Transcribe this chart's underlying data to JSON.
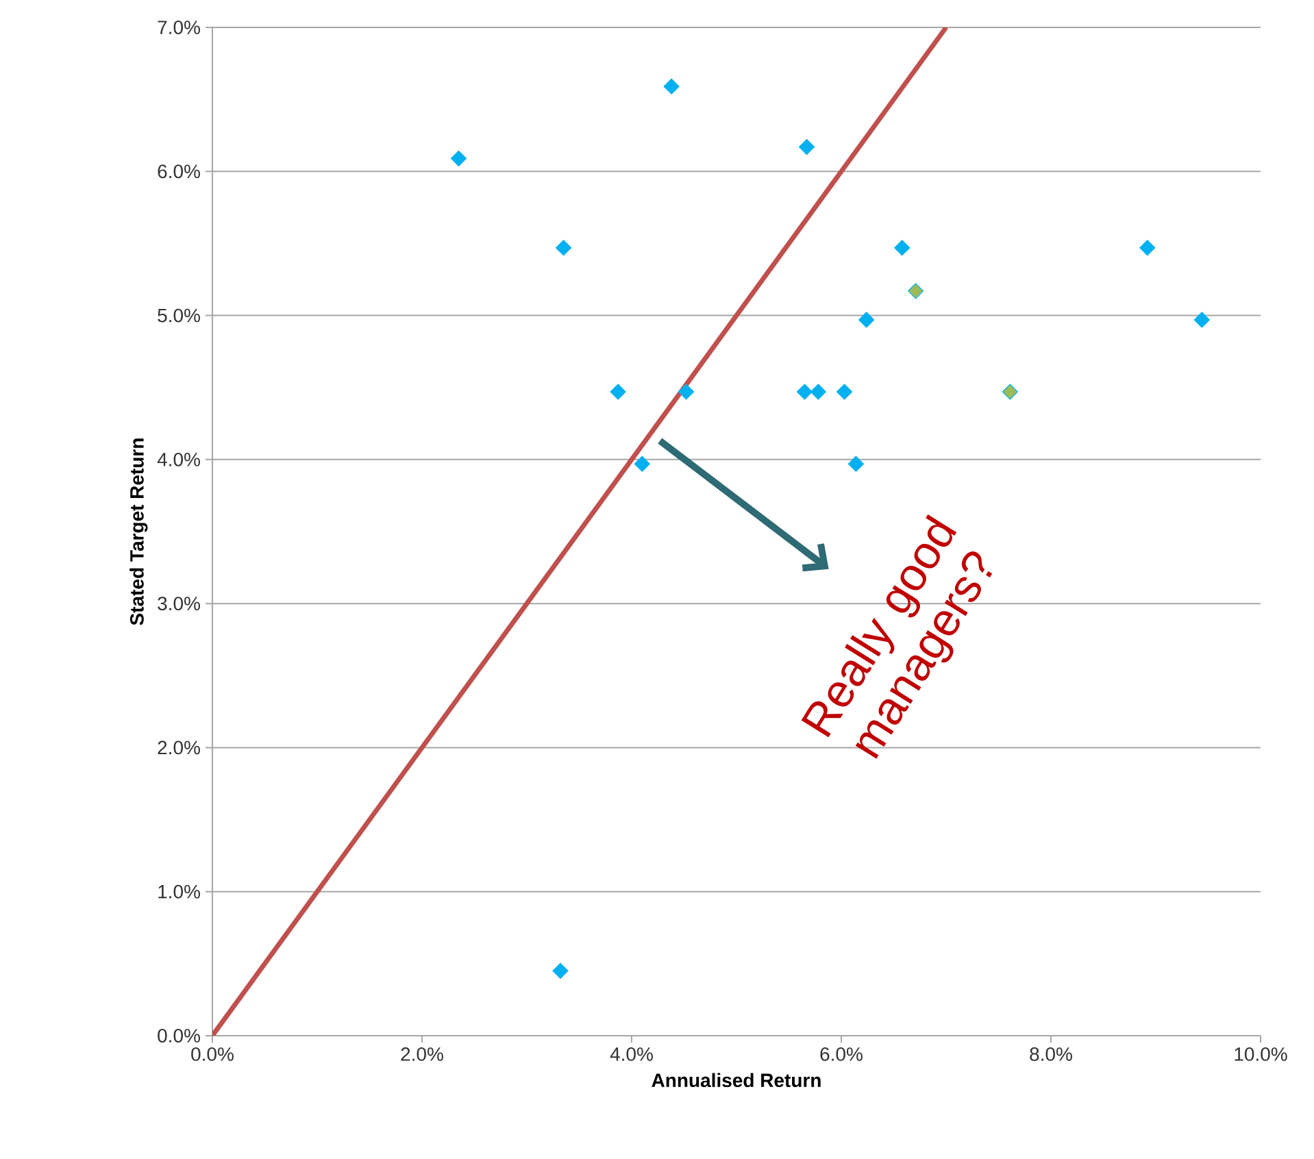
{
  "chart_data": {
    "type": "scatter",
    "xlabel": "Annualised Return",
    "ylabel": "Stated Target Return",
    "xlim": [
      0,
      10
    ],
    "ylim": [
      0,
      7
    ],
    "xticks": [
      {
        "value": 0,
        "label": "0.0%"
      },
      {
        "value": 2,
        "label": "2.0%"
      },
      {
        "value": 4,
        "label": "4.0%"
      },
      {
        "value": 6,
        "label": "6.0%"
      },
      {
        "value": 8,
        "label": "8.0%"
      },
      {
        "value": 10,
        "label": "10.0%"
      }
    ],
    "yticks": [
      {
        "value": 0,
        "label": "0.0%"
      },
      {
        "value": 1,
        "label": "1.0%"
      },
      {
        "value": 2,
        "label": "2.0%"
      },
      {
        "value": 3,
        "label": "3.0%"
      },
      {
        "value": 4,
        "label": "4.0%"
      },
      {
        "value": 5,
        "label": "5.0%"
      },
      {
        "value": 6,
        "label": "6.0%"
      },
      {
        "value": 7,
        "label": "7.0%"
      }
    ],
    "grid": "y",
    "marker": "diamond",
    "series": [
      {
        "x": [
          2.35,
          4.38,
          5.67,
          3.35,
          6.58,
          8.92,
          6.71,
          6.24,
          9.44,
          3.87,
          4.52,
          5.65,
          5.78,
          6.03,
          7.61,
          4.1,
          6.14,
          3.32
        ],
        "values": [
          6.09,
          6.59,
          6.17,
          5.47,
          5.47,
          5.47,
          5.17,
          4.97,
          4.97,
          4.47,
          4.47,
          4.47,
          4.47,
          4.47,
          4.47,
          3.97,
          3.97,
          0.45
        ],
        "color": "#00b0f0",
        "colors": [
          "#00b0f0",
          "#00b0f0",
          "#00b0f0",
          "#00b0f0",
          "#00b0f0",
          "#00b0f0",
          "#9bbb59",
          "#00b0f0",
          "#00b0f0",
          "#00b0f0",
          "#00b0f0",
          "#00b0f0",
          "#00b0f0",
          "#00b0f0",
          "#9bbb59",
          "#00b0f0",
          "#00b0f0",
          "#00b0f0"
        ]
      },
      {
        "type": "line",
        "x": [
          0,
          7
        ],
        "values": [
          0,
          7
        ],
        "color": "#c0504d",
        "marker": "none"
      }
    ],
    "annotations": [
      "Really good managers?"
    ]
  }
}
